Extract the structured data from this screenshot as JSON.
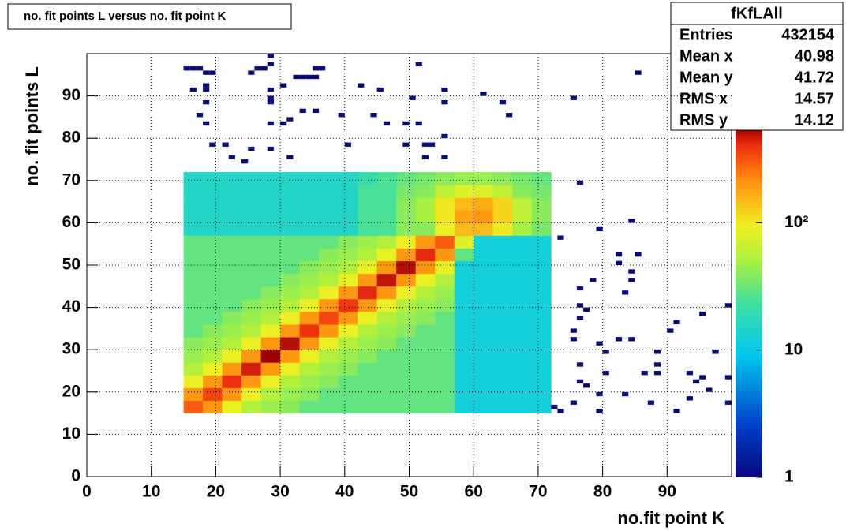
{
  "chart_data": {
    "type": "heatmap",
    "title": "no. fit points L versus no. fit point K",
    "xlabel": "no.fit point K",
    "ylabel": "no. fit points  L",
    "xlim": [
      0,
      100
    ],
    "ylim": [
      0,
      100
    ],
    "xticks": [
      0,
      10,
      20,
      30,
      40,
      50,
      60,
      70,
      80,
      90
    ],
    "yticks": [
      0,
      10,
      20,
      30,
      40,
      50,
      60,
      70,
      80,
      90
    ],
    "grid": true,
    "log_z": true,
    "zlim": [
      1,
      550
    ],
    "zticks": [
      1,
      10,
      {
        "value": 100,
        "label": "10²"
      }
    ],
    "xbins": [
      15,
      18,
      21,
      24,
      27,
      30,
      33,
      36,
      39,
      42,
      45,
      48,
      51,
      54,
      57,
      60,
      63,
      66,
      69,
      72
    ],
    "ybins": [
      15,
      18,
      21,
      24,
      27,
      30,
      33,
      36,
      39,
      42,
      45,
      48,
      51,
      54,
      57,
      60,
      63,
      66,
      69,
      72
    ],
    "z": [
      [
        300,
        200,
        90,
        55,
        45,
        40,
        30,
        30,
        30,
        30,
        30,
        30,
        30,
        30,
        12,
        12,
        12,
        12,
        12
      ],
      [
        200,
        350,
        200,
        90,
        55,
        45,
        40,
        30,
        30,
        30,
        30,
        30,
        30,
        30,
        12,
        12,
        12,
        12,
        12
      ],
      [
        90,
        200,
        400,
        200,
        90,
        55,
        45,
        40,
        30,
        30,
        30,
        30,
        30,
        30,
        12,
        12,
        12,
        12,
        12
      ],
      [
        55,
        90,
        200,
        450,
        200,
        90,
        55,
        45,
        40,
        30,
        30,
        30,
        30,
        30,
        12,
        12,
        12,
        12,
        12
      ],
      [
        45,
        55,
        90,
        200,
        550,
        200,
        90,
        55,
        45,
        40,
        30,
        30,
        30,
        30,
        12,
        12,
        12,
        12,
        12
      ],
      [
        40,
        45,
        55,
        90,
        200,
        500,
        200,
        90,
        55,
        45,
        40,
        30,
        30,
        30,
        12,
        12,
        12,
        12,
        12
      ],
      [
        30,
        40,
        45,
        55,
        90,
        200,
        400,
        200,
        90,
        55,
        45,
        40,
        30,
        30,
        12,
        12,
        12,
        12,
        12
      ],
      [
        30,
        30,
        40,
        45,
        55,
        90,
        200,
        350,
        200,
        90,
        55,
        45,
        40,
        30,
        12,
        12,
        12,
        12,
        12
      ],
      [
        30,
        30,
        30,
        40,
        45,
        55,
        90,
        200,
        380,
        200,
        90,
        55,
        45,
        40,
        12,
        12,
        12,
        12,
        12
      ],
      [
        30,
        30,
        30,
        30,
        40,
        45,
        55,
        90,
        200,
        420,
        200,
        90,
        55,
        45,
        12,
        12,
        12,
        12,
        12
      ],
      [
        30,
        30,
        30,
        30,
        30,
        40,
        45,
        55,
        90,
        200,
        480,
        200,
        90,
        55,
        12,
        12,
        12,
        12,
        12
      ],
      [
        30,
        30,
        30,
        30,
        30,
        30,
        40,
        45,
        55,
        90,
        200,
        500,
        200,
        90,
        12,
        12,
        12,
        12,
        12
      ],
      [
        30,
        30,
        30,
        30,
        30,
        30,
        30,
        40,
        45,
        55,
        90,
        200,
        420,
        200,
        30,
        12,
        12,
        12,
        12
      ],
      [
        30,
        30,
        30,
        30,
        30,
        30,
        30,
        30,
        40,
        45,
        55,
        90,
        200,
        300,
        80,
        12,
        12,
        12,
        12
      ],
      [
        15,
        15,
        15,
        15,
        15,
        15,
        15,
        15,
        15,
        25,
        25,
        40,
        40,
        90,
        150,
        150,
        100,
        50,
        35
      ],
      [
        15,
        15,
        15,
        15,
        15,
        15,
        15,
        15,
        15,
        25,
        25,
        40,
        50,
        100,
        180,
        200,
        120,
        60,
        40
      ],
      [
        15,
        15,
        15,
        15,
        15,
        15,
        15,
        15,
        15,
        25,
        25,
        40,
        50,
        100,
        150,
        170,
        120,
        60,
        40
      ],
      [
        15,
        15,
        15,
        15,
        15,
        15,
        15,
        15,
        15,
        25,
        25,
        35,
        40,
        60,
        80,
        80,
        60,
        40,
        35
      ],
      [
        15,
        15,
        15,
        15,
        15,
        15,
        15,
        15,
        15,
        20,
        25,
        30,
        35,
        40,
        45,
        45,
        40,
        35,
        30
      ]
    ],
    "points": {
      "x": [
        15,
        16,
        17,
        18,
        19,
        16,
        18,
        18,
        18,
        17,
        18,
        19,
        21,
        22,
        24,
        25,
        25,
        26,
        27,
        28,
        28,
        28,
        28,
        28,
        28,
        28,
        30,
        30,
        31,
        31,
        32,
        33,
        34,
        35,
        35,
        36,
        33,
        35,
        39,
        40,
        42,
        44,
        45,
        46,
        49,
        50,
        49,
        51,
        51,
        52,
        52,
        53,
        55,
        55,
        55,
        55,
        61,
        64,
        65,
        75,
        85,
        73,
        76,
        79,
        84,
        82,
        85,
        82,
        84,
        84,
        78,
        76,
        76,
        77,
        76,
        75,
        75,
        79,
        80,
        82,
        84,
        83,
        88,
        88,
        86,
        88,
        80,
        76,
        76,
        77,
        79,
        83,
        87,
        91,
        93,
        93,
        94,
        95,
        95,
        91,
        90,
        97,
        99,
        99,
        99,
        96,
        72,
        73,
        75,
        79
      ],
      "y": [
        96,
        96,
        96,
        95,
        95,
        91,
        92,
        91,
        88,
        85,
        83,
        78,
        78,
        75,
        74,
        77,
        95,
        96,
        96,
        97,
        99,
        91,
        89,
        88,
        83,
        77,
        92,
        83,
        84,
        75,
        94,
        94,
        94,
        94,
        96,
        96,
        86,
        86,
        85,
        78,
        92,
        85,
        91,
        83,
        83,
        89,
        78,
        83,
        97,
        75,
        78,
        78,
        91,
        88,
        80,
        75,
        90,
        88,
        85,
        89,
        95,
        56,
        69,
        58,
        60,
        52,
        52,
        50,
        48,
        46,
        46,
        44,
        40,
        39,
        37,
        34,
        32,
        31,
        29,
        32,
        32,
        43,
        29,
        26,
        24,
        24,
        24,
        26,
        22,
        21,
        19,
        19,
        17,
        15,
        18,
        24,
        22,
        23,
        38,
        36,
        34,
        29,
        40,
        23,
        17,
        20,
        16,
        15,
        17,
        15
      ]
    },
    "stats": {
      "title": "fKfLAll",
      "rows": [
        [
          "Entries",
          432154
        ],
        [
          "Mean x",
          40.98
        ],
        [
          "Mean y",
          41.72
        ],
        [
          "RMS x",
          14.57
        ],
        [
          "RMS y",
          14.12
        ]
      ]
    }
  }
}
